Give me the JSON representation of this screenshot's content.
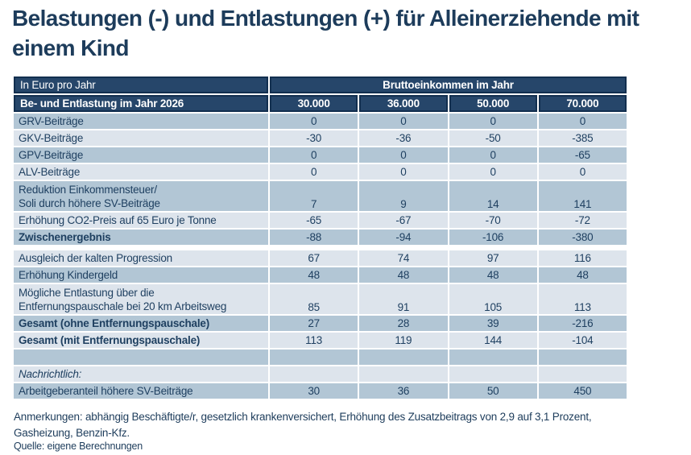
{
  "title": "Belastungen (-) und Entlastungen (+) für Alleinerziehende mit einem Kind",
  "table": {
    "corner_label": "In Euro pro Jahr",
    "group_header": "Bruttoeinkommen im Jahr",
    "row_header_label": "Be- und Entlastung im Jahr 2026",
    "columns": [
      "30.000",
      "36.000",
      "50.000",
      "70.000"
    ],
    "rows": [
      {
        "label": "GRV-Beiträge",
        "values": [
          "0",
          "0",
          "0",
          "0"
        ]
      },
      {
        "label": "GKV-Beiträge",
        "values": [
          "-30",
          "-36",
          "-50",
          "-385"
        ]
      },
      {
        "label": "GPV-Beiträge",
        "values": [
          "0",
          "0",
          "0",
          "-65"
        ]
      },
      {
        "label": "ALV-Beiträge",
        "values": [
          "0",
          "0",
          "0",
          "0"
        ]
      },
      {
        "label": "Reduktion Einkommensteuer/\nSoli durch höhere SV-Beiträge",
        "values": [
          "7",
          "9",
          "14",
          "141"
        ]
      },
      {
        "label": "Erhöhung CO2-Preis auf 65 Euro je Tonne",
        "values": [
          "-65",
          "-67",
          "-70",
          "-72"
        ]
      },
      {
        "label": "Zwischenergebnis",
        "values": [
          "-88",
          "-94",
          "-106",
          "-380"
        ]
      },
      {
        "label": "Ausgleich der kalten Progression",
        "values": [
          "67",
          "74",
          "97",
          "116"
        ]
      },
      {
        "label": "Erhöhung Kindergeld",
        "values": [
          "48",
          "48",
          "48",
          "48"
        ]
      },
      {
        "label": "Mögliche Entlastung über die\nEntfernungspauschale bei 20 km Arbeitsweg",
        "values": [
          "85",
          "91",
          "105",
          "113"
        ]
      },
      {
        "label": "Gesamt (ohne Entfernungspauschale)",
        "values": [
          "27",
          "28",
          "39",
          "-216"
        ]
      },
      {
        "label": "Gesamt (mit Entfernungspauschale)",
        "values": [
          "113",
          "119",
          "144",
          "-104"
        ]
      },
      {
        "label": "",
        "values": [
          "",
          "",
          "",
          ""
        ]
      },
      {
        "label": "Nachrichtlich:",
        "values": [
          "",
          "",
          "",
          ""
        ]
      },
      {
        "label": "Arbeitgeberanteil höhere SV-Beiträge",
        "values": [
          "30",
          "36",
          "50",
          "450"
        ]
      }
    ]
  },
  "notes": "Anmerkungen: abhängig Beschäftigte/r, gesetzlich krankenversichert, Erhöhung des Zusatzbeitrags von 2,9 auf 3,1 Prozent,\nGasheizung, Benzin-Kfz.",
  "source": "Quelle: eigene Berechnungen",
  "colors": {
    "header_bg": "#26466a",
    "header_border": "#122f4f",
    "row_dark": "#b2c6d5",
    "row_light": "#dde4ec",
    "text": "#1d3c5b"
  },
  "chart_data": {
    "type": "table",
    "title": "Belastungen (-) und Entlastungen (+) für Alleinerziehende mit einem Kind",
    "unit_label": "In Euro pro Jahr",
    "column_group": "Bruttoeinkommen im Jahr",
    "row_dimension": "Be- und Entlastung im Jahr 2026",
    "columns": [
      30000,
      36000,
      50000,
      70000
    ],
    "rows": [
      {
        "label": "GRV-Beiträge",
        "values": [
          0,
          0,
          0,
          0
        ]
      },
      {
        "label": "GKV-Beiträge",
        "values": [
          -30,
          -36,
          -50,
          -385
        ]
      },
      {
        "label": "GPV-Beiträge",
        "values": [
          0,
          0,
          0,
          -65
        ]
      },
      {
        "label": "ALV-Beiträge",
        "values": [
          0,
          0,
          0,
          0
        ]
      },
      {
        "label": "Reduktion Einkommensteuer/ Soli durch höhere SV-Beiträge",
        "values": [
          7,
          9,
          14,
          141
        ]
      },
      {
        "label": "Erhöhung CO2-Preis auf 65 Euro je Tonne",
        "values": [
          -65,
          -67,
          -70,
          -72
        ]
      },
      {
        "label": "Zwischenergebnis",
        "values": [
          -88,
          -94,
          -106,
          -380
        ]
      },
      {
        "label": "Ausgleich der kalten Progression",
        "values": [
          67,
          74,
          97,
          116
        ]
      },
      {
        "label": "Erhöhung Kindergeld",
        "values": [
          48,
          48,
          48,
          48
        ]
      },
      {
        "label": "Mögliche Entlastung über die Entfernungspauschale bei 20 km Arbeitsweg",
        "values": [
          85,
          91,
          105,
          113
        ]
      },
      {
        "label": "Gesamt (ohne Entfernungspauschale)",
        "values": [
          27,
          28,
          39,
          -216
        ]
      },
      {
        "label": "Gesamt (mit Entfernungspauschale)",
        "values": [
          113,
          119,
          144,
          -104
        ]
      },
      {
        "label": "Nachrichtlich: Arbeitgeberanteil höhere SV-Beiträge",
        "values": [
          30,
          36,
          50,
          450
        ]
      }
    ],
    "notes": "Anmerkungen: abhängig Beschäftigte/r, gesetzlich krankenversichert, Erhöhung des Zusatzbeitrags von 2,9 auf 3,1 Prozent, Gasheizung, Benzin-Kfz.",
    "source": "Quelle: eigene Berechnungen"
  }
}
